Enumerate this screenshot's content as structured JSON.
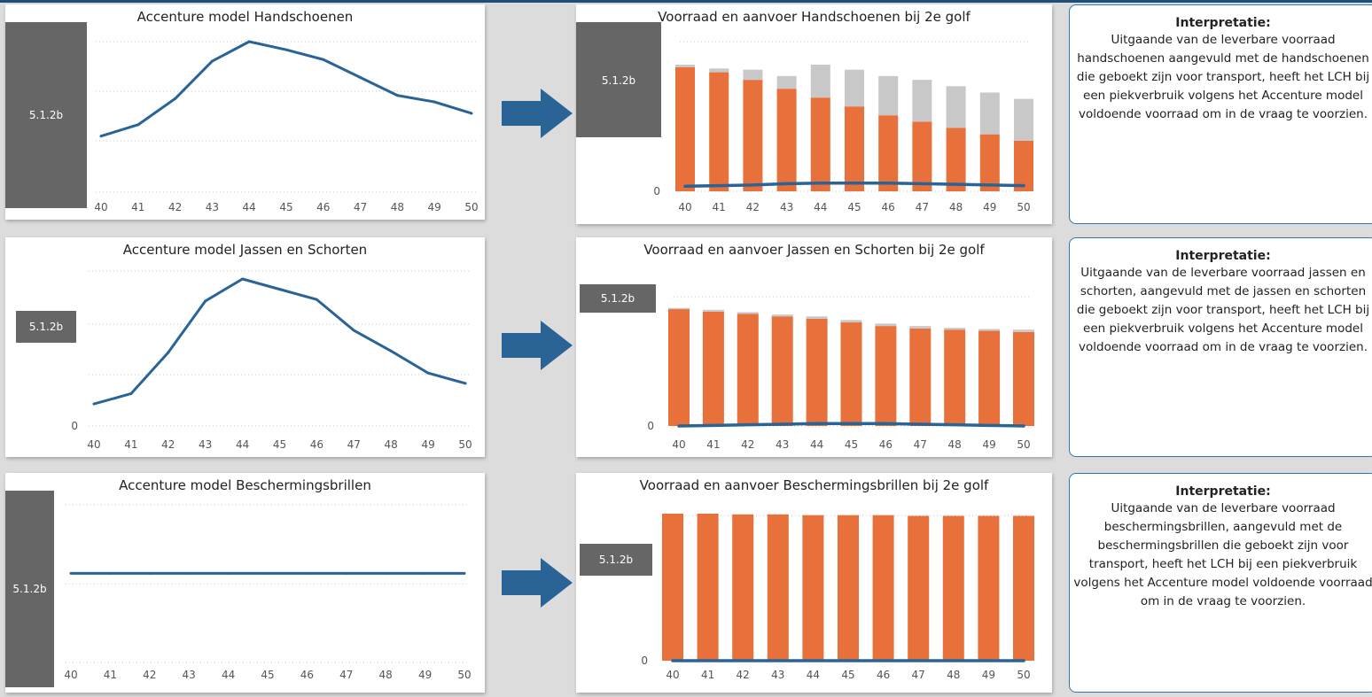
{
  "colors": {
    "line": "#2a6496",
    "orange": "#e8703a",
    "grey": "#c8c8c8",
    "redaction": "#666666",
    "arrow": "#2a6496",
    "border": "#2e75b6"
  },
  "redaction_label": "5.1.2b",
  "zero_label": "0",
  "icons": {
    "arrow": "right-arrow-icon"
  },
  "rows": [
    {
      "left_title": "Accenture model Handschoenen",
      "right_title": "Voorraad en aanvoer Handschoenen bij 2e golf",
      "interpretation": {
        "heading": "Interpretatie:",
        "text": "Uitgaande van de leverbare voorraad handschoenen aangevuld met de handschoenen die geboekt zijn voor transport, heeft het LCH bij een piekverbruik volgens het Accenture model voldoende voorraad om in de vraag te voorzien."
      }
    },
    {
      "left_title": "Accenture model Jassen en Schorten",
      "right_title": "Voorraad en aanvoer Jassen en Schorten bij 2e golf",
      "interpretation": {
        "heading": "Interpretatie:",
        "text": "Uitgaande van de leverbare voorraad jassen en schorten, aangevuld met de jassen en schorten die geboekt zijn voor transport, heeft het LCH bij een piekverbruik volgens het Accenture model voldoende voorraad om in de vraag te voorzien."
      }
    },
    {
      "left_title": "Accenture model Beschermingsbrillen",
      "right_title": "Voorraad en aanvoer Beschermingsbrillen bij 2e golf",
      "interpretation": {
        "heading": "Interpretatie:",
        "text": "Uitgaande van de leverbare voorraad beschermingsbrillen, aangevuld met de beschermingsbrillen die geboekt zijn voor transport, heeft het LCH bij een piekverbruik volgens het Accenture model voldoende voorraad om in de vraag te voorzien."
      }
    }
  ],
  "chart_data": [
    {
      "type": "line",
      "title": "Accenture model Handschoenen",
      "x": [
        "40",
        "41",
        "42",
        "43",
        "44",
        "45",
        "46",
        "47",
        "48",
        "49",
        "50"
      ],
      "ylim": [
        0,
        1
      ],
      "series": [
        {
          "values": [
            0.42,
            0.49,
            0.65,
            0.88,
            1.0,
            0.95,
            0.89,
            0.78,
            0.67,
            0.63,
            0.56
          ]
        }
      ]
    },
    {
      "type": "bar",
      "title": "Voorraad en aanvoer Handschoenen bij 2e golf",
      "categories": [
        "40",
        "41",
        "42",
        "43",
        "44",
        "45",
        "46",
        "47",
        "48",
        "49",
        "50"
      ],
      "ylim": [
        0,
        1
      ],
      "series": [
        {
          "values": [
            0.98,
            0.94,
            0.88,
            0.81,
            0.74,
            0.67,
            0.6,
            0.55,
            0.5,
            0.45,
            0.4
          ],
          "color": "#e8703a"
        },
        {
          "values": [
            0.02,
            0.03,
            0.08,
            0.1,
            0.26,
            0.29,
            0.31,
            0.33,
            0.33,
            0.33,
            0.33
          ],
          "color": "#c8c8c8"
        },
        {
          "type": "line",
          "values": [
            0.04,
            0.045,
            0.05,
            0.06,
            0.065,
            0.065,
            0.065,
            0.06,
            0.055,
            0.05,
            0.045
          ],
          "color": "#2a6496"
        }
      ]
    },
    {
      "type": "line",
      "title": "Accenture model Jassen en Schorten",
      "x": [
        "40",
        "41",
        "42",
        "43",
        "44",
        "45",
        "46",
        "47",
        "48",
        "49",
        "50"
      ],
      "ylim": [
        0,
        1
      ],
      "series": [
        {
          "values": [
            0.15,
            0.22,
            0.5,
            0.85,
            1.0,
            0.93,
            0.86,
            0.65,
            0.51,
            0.36,
            0.29
          ]
        }
      ]
    },
    {
      "type": "bar",
      "title": "Voorraad en aanvoer Jassen en Schorten bij 2e golf",
      "categories": [
        "40",
        "41",
        "42",
        "43",
        "44",
        "45",
        "46",
        "47",
        "48",
        "49",
        "50"
      ],
      "ylim": [
        0,
        1
      ],
      "series": [
        {
          "values": [
            0.97,
            0.95,
            0.93,
            0.91,
            0.89,
            0.86,
            0.83,
            0.81,
            0.8,
            0.79,
            0.78
          ],
          "color": "#e8703a"
        },
        {
          "values": [
            0.01,
            0.015,
            0.015,
            0.015,
            0.02,
            0.02,
            0.02,
            0.02,
            0.015,
            0.015,
            0.02
          ],
          "color": "#c8c8c8"
        },
        {
          "type": "line",
          "values": [
            0.0,
            0.005,
            0.01,
            0.015,
            0.02,
            0.02,
            0.02,
            0.015,
            0.01,
            0.005,
            0.0
          ],
          "color": "#2a6496"
        }
      ]
    },
    {
      "type": "line",
      "title": "Accenture model Beschermingsbrillen",
      "x": [
        "40",
        "41",
        "42",
        "43",
        "44",
        "45",
        "46",
        "47",
        "48",
        "49",
        "50"
      ],
      "ylim": [
        0,
        1
      ],
      "series": [
        {
          "values": [
            0.55,
            0.55,
            0.55,
            0.55,
            0.55,
            0.55,
            0.55,
            0.55,
            0.55,
            0.55,
            0.55
          ]
        }
      ]
    },
    {
      "type": "bar",
      "title": "Voorraad en aanvoer Beschermingsbrillen bij 2e golf",
      "categories": [
        "40",
        "41",
        "42",
        "43",
        "44",
        "45",
        "46",
        "47",
        "48",
        "49",
        "50"
      ],
      "ylim": [
        0,
        1
      ],
      "series": [
        {
          "values": [
            1.0,
            1.0,
            0.995,
            0.995,
            0.99,
            0.99,
            0.99,
            0.985,
            0.985,
            0.985,
            0.985
          ],
          "color": "#e8703a"
        },
        {
          "values": [
            0,
            0,
            0,
            0,
            0,
            0,
            0,
            0,
            0,
            0,
            0
          ],
          "color": "#c8c8c8"
        },
        {
          "type": "line",
          "values": [
            0,
            0,
            0,
            0,
            0,
            0,
            0,
            0,
            0,
            0,
            0
          ],
          "color": "#2a6496"
        }
      ]
    }
  ]
}
